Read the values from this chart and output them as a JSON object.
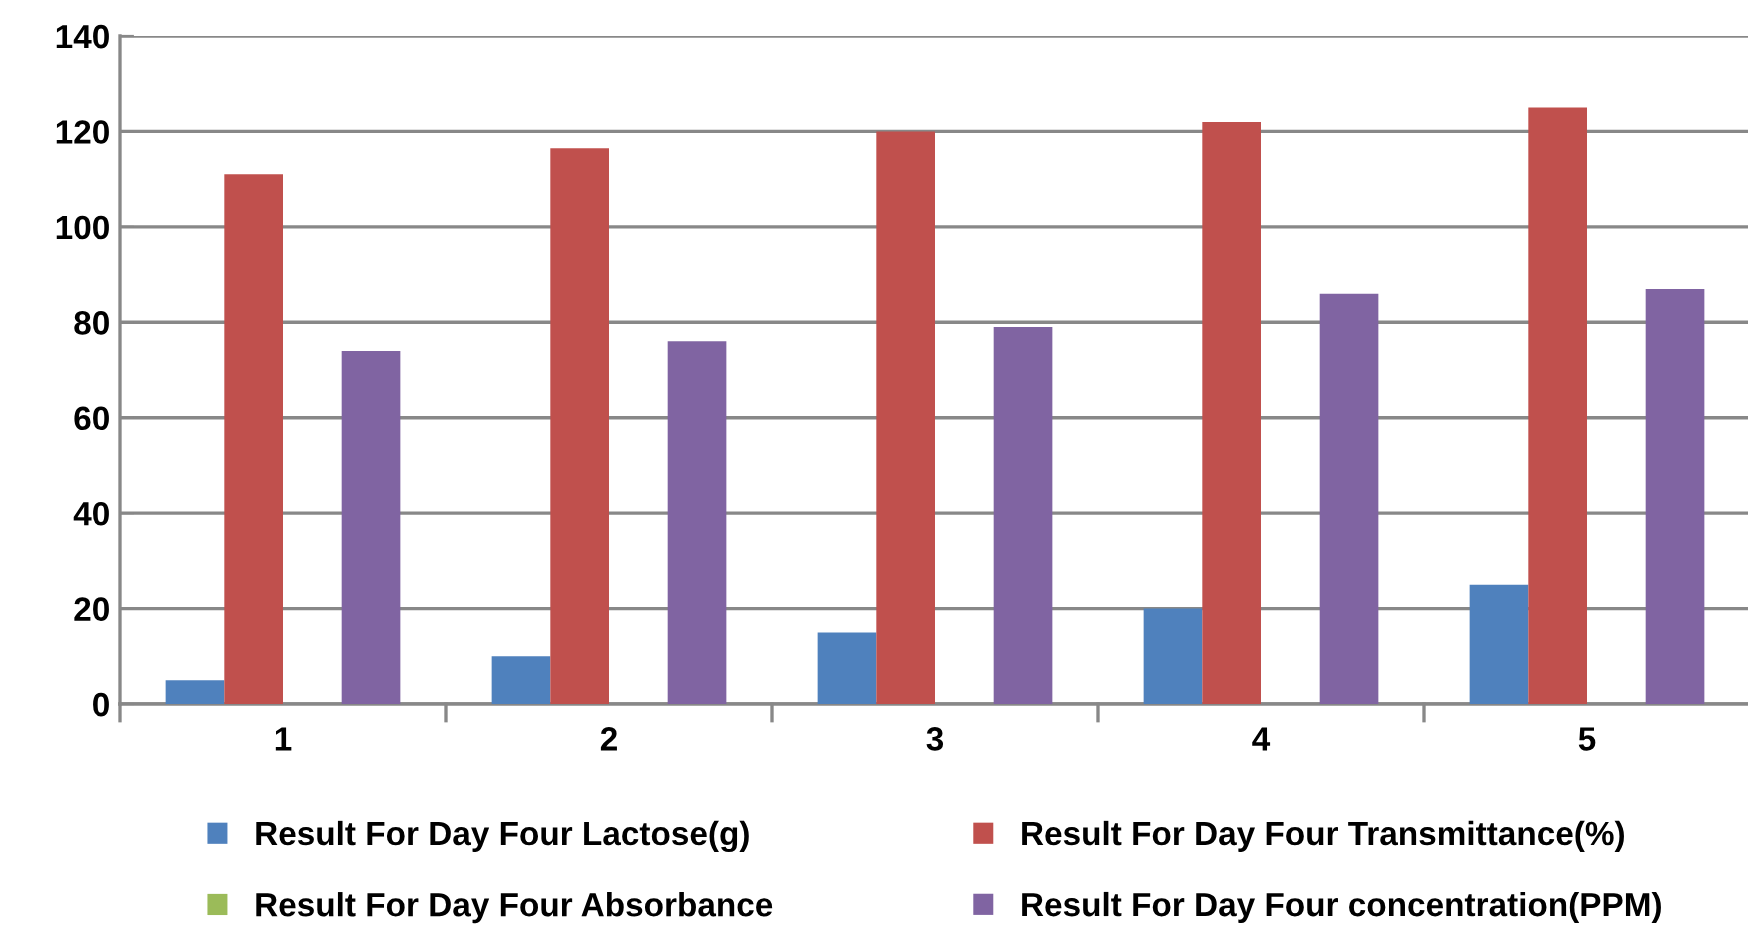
{
  "chart_data": {
    "type": "bar",
    "categories": [
      "1",
      "2",
      "3",
      "4",
      "5"
    ],
    "series": [
      {
        "name": "Result For Day Four Lactose(g)",
        "color": "#4f81bd",
        "values": [
          5,
          10,
          15,
          20,
          25
        ]
      },
      {
        "name": "Result For Day Four Transmittance(%)",
        "color": "#c0504d",
        "values": [
          111,
          116.5,
          120,
          122,
          125
        ]
      },
      {
        "name": "Result For Day Four Absorbance",
        "color": "#9bbb59",
        "values": [
          0,
          0,
          0,
          0,
          0
        ]
      },
      {
        "name": "Result For Day Four concentration(PPM)",
        "color": "#8064a2",
        "values": [
          74,
          76,
          79,
          86,
          87
        ]
      }
    ],
    "ylim": [
      0,
      140
    ],
    "yticks": [
      0,
      20,
      40,
      60,
      80,
      100,
      120,
      140
    ],
    "grid": "y",
    "legend": "bottom"
  }
}
